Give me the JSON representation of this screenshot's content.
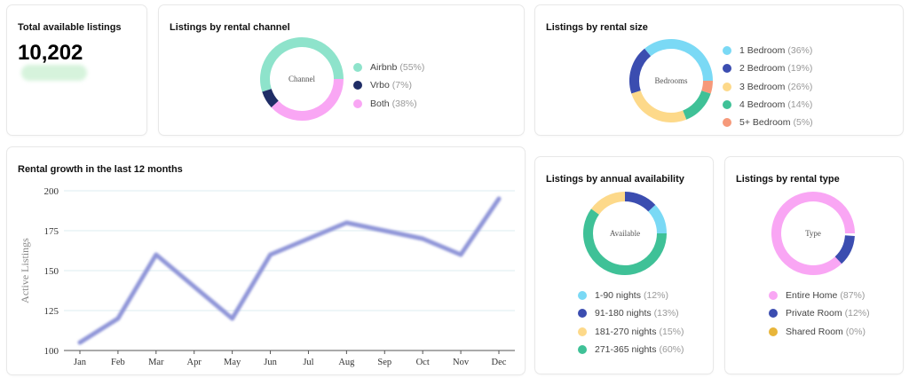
{
  "total": {
    "title": "Total available listings",
    "value": "10,202"
  },
  "channel": {
    "title": "Listings by rental channel",
    "center": "Channel",
    "items": [
      {
        "label": "Airbnb",
        "pct": "(55%)",
        "value": 55,
        "color": "#8ee3cb"
      },
      {
        "label": "Vrbo",
        "pct": "(7%)",
        "value": 7,
        "color": "#1f2d66"
      },
      {
        "label": "Both",
        "pct": "(38%)",
        "value": 38,
        "color": "#f9a6f4"
      }
    ]
  },
  "size": {
    "title": "Listings by rental size",
    "center": "Bedrooms",
    "items": [
      {
        "label": "1 Bedroom",
        "pct": "(36%)",
        "value": 36,
        "color": "#7ad9f5"
      },
      {
        "label": "2 Bedroom",
        "pct": "(19%)",
        "value": 19,
        "color": "#3b4db0"
      },
      {
        "label": "3 Bedroom",
        "pct": "(26%)",
        "value": 26,
        "color": "#fdd98a"
      },
      {
        "label": "4 Bedroom",
        "pct": "(14%)",
        "value": 14,
        "color": "#3fc197"
      },
      {
        "label": "5+ Bedroom",
        "pct": "(5%)",
        "value": 5,
        "color": "#f6997a"
      }
    ]
  },
  "availability": {
    "title": "Listings by annual availability",
    "center": "Available",
    "items": [
      {
        "label": "1-90 nights",
        "pct": "(12%)",
        "value": 12,
        "color": "#7ad9f5"
      },
      {
        "label": "91-180 nights",
        "pct": "(13%)",
        "value": 13,
        "color": "#3b4db0"
      },
      {
        "label": "181-270 nights",
        "pct": "(15%)",
        "value": 15,
        "color": "#fdd98a"
      },
      {
        "label": "271-365 nights",
        "pct": "(60%)",
        "value": 60,
        "color": "#3fc197"
      }
    ]
  },
  "type": {
    "title": "Listings by rental type",
    "center": "Type",
    "items": [
      {
        "label": "Entire Home",
        "pct": "(87%)",
        "value": 87,
        "color": "#f9a6f4"
      },
      {
        "label": "Private Room",
        "pct": "(12%)",
        "value": 12,
        "color": "#3b4db0"
      },
      {
        "label": "Shared Room",
        "pct": "(0%)",
        "value": 0,
        "color": "#e8b53a"
      }
    ]
  },
  "chart_data": {
    "type": "line",
    "title": "Rental growth in the last 12 months",
    "xlabel": "",
    "ylabel": "Active Listings",
    "categories": [
      "Jan",
      "Feb",
      "Mar",
      "Apr",
      "May",
      "Jun",
      "Jul",
      "Aug",
      "Sep",
      "Oct",
      "Nov",
      "Dec"
    ],
    "values": [
      105,
      120,
      160,
      140,
      120,
      160,
      170,
      180,
      175,
      170,
      160,
      195
    ],
    "ylim": [
      100,
      200
    ],
    "yticks": [
      100,
      125,
      150,
      175,
      200
    ],
    "grid": true,
    "color": "#8f95d8"
  }
}
